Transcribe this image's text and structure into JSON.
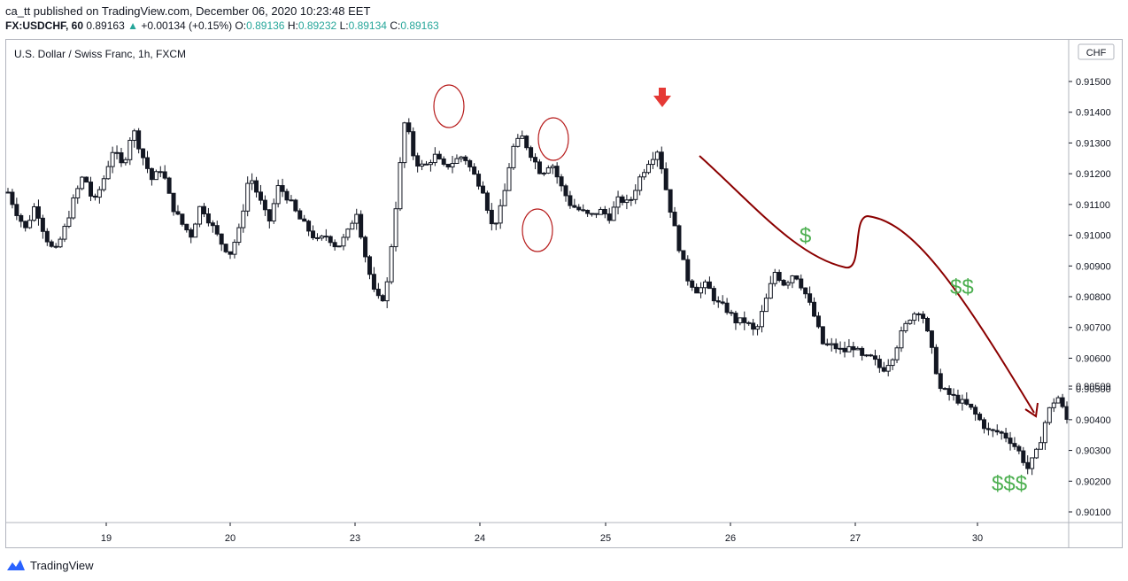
{
  "header": {
    "published": "ca_tt published on TradingView.com, December 06, 2020 10:23:48 EET",
    "symbol": "FX:USDCHF, 60",
    "last": "0.89163",
    "change": "+0.00134 (+0.15%)",
    "o_label": "O:",
    "o_value": "0.89136",
    "h_label": "H:",
    "h_value": "0.89232",
    "l_label": "L:",
    "l_value": "0.89134",
    "c_label": "C:",
    "c_value": "0.89163"
  },
  "footer": {
    "brand": "TradingView"
  },
  "colors": {
    "accent": "#26a69a",
    "arrow": "#e53935",
    "curve": "#8b0000",
    "dollar": "#4caf50",
    "circle": "#b71c1c"
  },
  "chart_data": {
    "type": "candlestick",
    "title": "U.S. Dollar / Swiss Franc, 1h, FXCM",
    "currency_label": "CHF",
    "current_price_label": "0.90509",
    "y_ticks": [
      "0.91500",
      "0.91400",
      "0.91300",
      "0.91200",
      "0.91100",
      "0.91000",
      "0.90900",
      "0.90800",
      "0.90700",
      "0.90600",
      "0.90500",
      "0.90400",
      "0.90300",
      "0.90200",
      "0.90100"
    ],
    "y_tick_values": [
      0.915,
      0.914,
      0.913,
      0.912,
      0.911,
      0.91,
      0.909,
      0.908,
      0.907,
      0.906,
      0.905,
      0.904,
      0.903,
      0.902,
      0.901
    ],
    "x_ticks": [
      "19",
      "20",
      "23",
      "24",
      "25",
      "26",
      "27",
      "30"
    ],
    "ylim": [
      0.9006,
      0.916
    ],
    "grid": false,
    "annotations": {
      "dollar_labels": [
        "$",
        "$$",
        "$$$"
      ]
    },
    "price_path": [
      [
        0,
        0.9114
      ],
      [
        4,
        0.9108
      ],
      [
        9,
        0.9102
      ],
      [
        14,
        0.911
      ],
      [
        19,
        0.91
      ],
      [
        24,
        0.9094
      ],
      [
        29,
        0.9102
      ],
      [
        34,
        0.9112
      ],
      [
        39,
        0.912
      ],
      [
        44,
        0.911
      ],
      [
        49,
        0.9118
      ],
      [
        54,
        0.9128
      ],
      [
        59,
        0.9122
      ],
      [
        64,
        0.9135
      ],
      [
        69,
        0.9126
      ],
      [
        74,
        0.9118
      ],
      [
        79,
        0.9122
      ],
      [
        84,
        0.911
      ],
      [
        89,
        0.9104
      ],
      [
        94,
        0.91
      ],
      [
        99,
        0.911
      ],
      [
        104,
        0.9104
      ],
      [
        109,
        0.9098
      ],
      [
        114,
        0.9094
      ],
      [
        119,
        0.9102
      ],
      [
        124,
        0.912
      ],
      [
        129,
        0.9112
      ],
      [
        134,
        0.9104
      ],
      [
        139,
        0.9116
      ],
      [
        144,
        0.9112
      ],
      [
        149,
        0.9106
      ],
      [
        154,
        0.9102
      ],
      [
        159,
        0.9098
      ],
      [
        164,
        0.91
      ],
      [
        169,
        0.9096
      ],
      [
        174,
        0.91
      ],
      [
        179,
        0.9108
      ],
      [
        184,
        0.9092
      ],
      [
        189,
        0.9079
      ],
      [
        194,
        0.908
      ],
      [
        199,
        0.9108
      ],
      [
        204,
        0.9138
      ],
      [
        209,
        0.9124
      ],
      [
        214,
        0.9122
      ],
      [
        219,
        0.9126
      ],
      [
        224,
        0.9122
      ],
      [
        229,
        0.9124
      ],
      [
        234,
        0.9126
      ],
      [
        239,
        0.912
      ],
      [
        244,
        0.9115
      ],
      [
        249,
        0.9102
      ],
      [
        254,
        0.911
      ],
      [
        259,
        0.9128
      ],
      [
        264,
        0.9132
      ],
      [
        269,
        0.9126
      ],
      [
        274,
        0.912
      ],
      [
        279,
        0.9124
      ],
      [
        284,
        0.9116
      ],
      [
        289,
        0.911
      ],
      [
        294,
        0.9108
      ],
      [
        299,
        0.9106
      ],
      [
        304,
        0.9108
      ],
      [
        309,
        0.9106
      ],
      [
        314,
        0.9112
      ],
      [
        319,
        0.911
      ],
      [
        324,
        0.9118
      ],
      [
        329,
        0.9124
      ],
      [
        334,
        0.9128
      ],
      [
        339,
        0.9112
      ],
      [
        344,
        0.9098
      ],
      [
        349,
        0.9086
      ],
      [
        354,
        0.9082
      ],
      [
        359,
        0.9084
      ],
      [
        364,
        0.9078
      ],
      [
        369,
        0.9076
      ],
      [
        374,
        0.9072
      ],
      [
        379,
        0.9072
      ],
      [
        384,
        0.9068
      ],
      [
        389,
        0.9078
      ],
      [
        394,
        0.9088
      ],
      [
        399,
        0.9084
      ],
      [
        404,
        0.9088
      ],
      [
        409,
        0.9082
      ],
      [
        414,
        0.9074
      ],
      [
        419,
        0.9064
      ],
      [
        424,
        0.9064
      ],
      [
        429,
        0.9062
      ],
      [
        434,
        0.9064
      ],
      [
        439,
        0.906
      ],
      [
        444,
        0.906
      ],
      [
        449,
        0.9056
      ],
      [
        454,
        0.906
      ],
      [
        459,
        0.9068
      ],
      [
        464,
        0.9074
      ],
      [
        469,
        0.9076
      ],
      [
        474,
        0.9064
      ],
      [
        479,
        0.905
      ],
      [
        484,
        0.9048
      ],
      [
        489,
        0.9046
      ],
      [
        494,
        0.9044
      ],
      [
        499,
        0.904
      ],
      [
        504,
        0.9036
      ],
      [
        509,
        0.9036
      ],
      [
        514,
        0.9034
      ],
      [
        519,
        0.903
      ],
      [
        524,
        0.9024
      ],
      [
        529,
        0.903
      ],
      [
        534,
        0.9042
      ],
      [
        539,
        0.9048
      ],
      [
        544,
        0.904
      ]
    ]
  }
}
